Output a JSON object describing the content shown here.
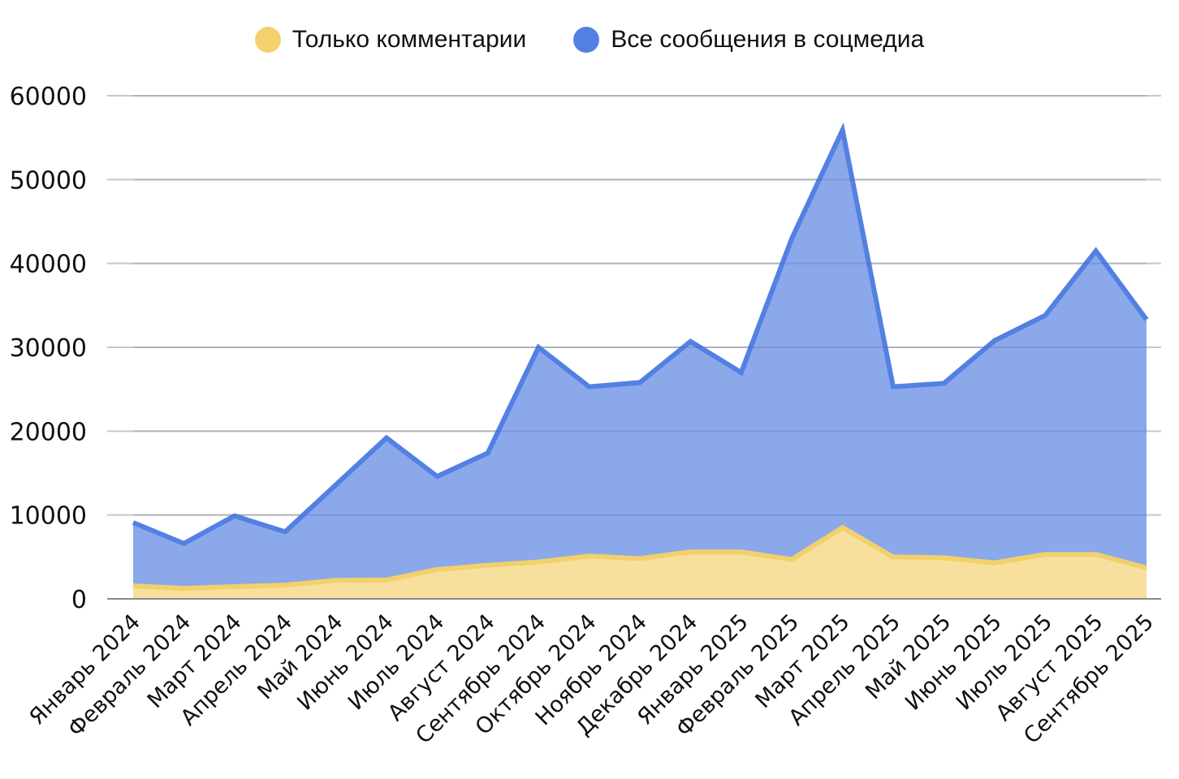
{
  "legend": {
    "items": [
      {
        "label": "Только комментарии",
        "color": "#f4d06f"
      },
      {
        "label": "Все сообщения в соцмедиа",
        "color": "#5380e3"
      }
    ]
  },
  "colors": {
    "comments_line": "#f2d06b",
    "comments_fill": "#f7e09d",
    "all_line": "#5380e3",
    "all_fill": "#8aa8ea",
    "grid": "#c8c8c8",
    "axis": "#888888"
  },
  "chart_data": {
    "type": "area",
    "title": "",
    "xlabel": "",
    "ylabel": "",
    "ylim": [
      0,
      60000
    ],
    "yticks": [
      0,
      10000,
      20000,
      30000,
      40000,
      50000,
      60000
    ],
    "grid": true,
    "legend_position": "top",
    "categories": [
      "Январь 2024",
      "Февраль 2024",
      "Март 2024",
      "Апрель 2024",
      "Май 2024",
      "Июнь 2024",
      "Июль 2024",
      "Август 2024",
      "Сентябрь 2024",
      "Октябрь 2024",
      "Ноябрь 2024",
      "Декабрь 2024",
      "Январь 2025",
      "Февраль 2025",
      "Март 2025",
      "Апрель 2025",
      "Май 2025",
      "Июнь 2025",
      "Июль 2025",
      "Август 2025",
      "Сентябрь 2025"
    ],
    "series": [
      {
        "name": "Все сообщения в соцмедиа",
        "values": [
          9100,
          6600,
          9900,
          8000,
          13600,
          19200,
          14600,
          17400,
          30000,
          25300,
          25800,
          30700,
          27000,
          43000,
          55900,
          25300,
          25700,
          30800,
          33800,
          41500,
          33300
        ]
      },
      {
        "name": "Только комментарии",
        "values": [
          1550,
          1250,
          1450,
          1650,
          2200,
          2250,
          3500,
          4000,
          4400,
          5100,
          4800,
          5600,
          5600,
          4700,
          8500,
          5000,
          4900,
          4300,
          5300,
          5300,
          3700
        ]
      }
    ]
  }
}
